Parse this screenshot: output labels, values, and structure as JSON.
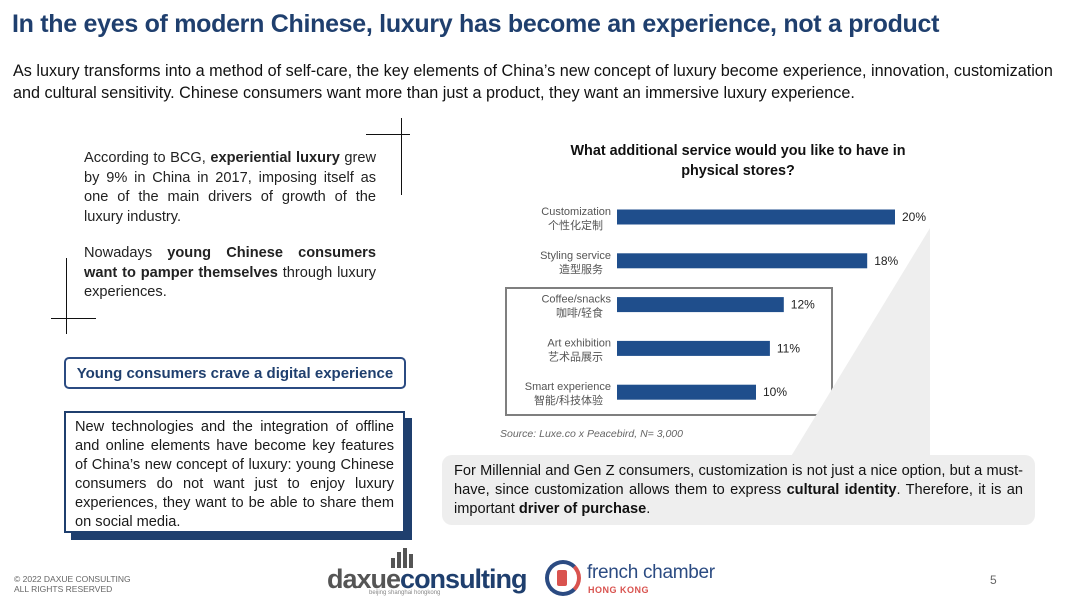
{
  "header": {
    "title": "In the eyes of modern Chinese, luxury has become an experience, not a product",
    "subtitle": "As luxury transforms into a method of self-care, the key elements of China’s new concept of luxury become experience, innovation, customization and cultural sensitivity. Chinese consumers want more than just a product, they want an immersive luxury experience."
  },
  "left": {
    "p1_a": "According to BCG, ",
    "p1_b": "experiential luxury",
    "p1_c": " grew by 9% in China in 2017, imposing itself as one of the main drivers of growth of the luxury industry.",
    "p2_a": "Nowadays ",
    "p2_b": "young Chinese consumers want to pamper themselves",
    "p2_c": " through luxury experiences.",
    "crave_label": "Young consumers crave a digital experience",
    "tech_text": "New technologies and the integration of offline and online elements have become key features of China’s new concept of luxury: young Chinese consumers do not want just to enjoy luxury experiences, they want to be able to share them on social media."
  },
  "chart_data": {
    "type": "bar",
    "orientation": "horizontal",
    "title": "What additional service would you like to have in physical stores?",
    "categories": [
      "Customization",
      "Styling service",
      "Coffee/snacks",
      "Art exhibition",
      "Smart experience"
    ],
    "categories_cn": [
      "个性化定制",
      "造型服务",
      "咖啡/轻食",
      "艺术品展示",
      "智能/科技体验"
    ],
    "values": [
      20,
      18,
      12,
      11,
      10
    ],
    "value_labels": [
      "20%",
      "18%",
      "12%",
      "11%",
      "10%"
    ],
    "xlim": [
      0,
      20
    ],
    "highlighted_categories": [
      "Coffee/snacks",
      "Art exhibition",
      "Smart experience"
    ],
    "bar_color": "#1f4e8c",
    "source": "Source: Luxe.co x Peacebird, N= 3,000"
  },
  "callout": {
    "a": "For Millennial and Gen Z consumers, customization is not just a nice option, but a must-have, since customization allows them to express ",
    "b": "cultural identity",
    "c": ". Therefore, it is an important ",
    "d": "driver of purchase",
    "e": "."
  },
  "footer": {
    "copyright_line1": "© 2022 DAXUE CONSULTING",
    "copyright_line2": "ALL RIGHTS RESERVED",
    "page_number": "5",
    "logo_dx_main": "daxue",
    "logo_dx_accent": "consulting",
    "logo_dx_tag": "beijing shanghai hongkong",
    "logo_fc_name": "french chamber",
    "logo_fc_sub": "HONG KONG"
  },
  "colors": {
    "title": "#1f3f6e",
    "bar": "#1f4e8c",
    "callout_bg": "#eeeeee"
  }
}
